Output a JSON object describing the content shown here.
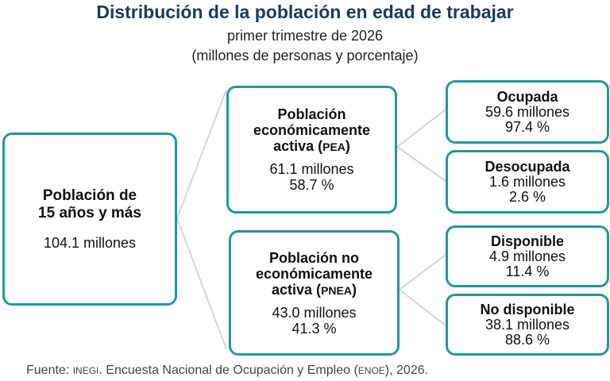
{
  "title": "Distribución de la población en edad de trabajar",
  "subtitle": "primer trimestre de 2026",
  "subtitle2": "(millones de personas y porcentaje)",
  "nodes": {
    "total": {
      "name1": "Población de",
      "name2": "15 años y más",
      "value": "104.1 millones"
    },
    "pea": {
      "name1": "Población",
      "name2": "económicamente",
      "name3": "activa (",
      "abbr": "PEA",
      "name3_end": ")",
      "value": "61.1 millones",
      "pct": "58.7 %"
    },
    "pnea": {
      "name1": "Población no",
      "name2": "económicamente",
      "name3": "activa (",
      "abbr": "PNEA",
      "name3_end": ")",
      "value": "43.0 millones",
      "pct": "41.3 %"
    },
    "ocupada": {
      "name": "Ocupada",
      "value": "59.6 millones",
      "pct": "97.4 %"
    },
    "desocupada": {
      "name": "Desocupada",
      "value": "1.6 millones",
      "pct": "2.6 %"
    },
    "disponible": {
      "name": "Disponible",
      "value": "4.9 millones",
      "pct": "11.4 %"
    },
    "no_disponible": {
      "name": "No disponible",
      "value": "38.1 millones",
      "pct": "88.6 %"
    }
  },
  "source": {
    "prefix": "Fuente: ",
    "inst": "INEGI",
    "middle": ". Encuesta Nacional de Ocupación y Empleo (",
    "survey": "ENOE",
    "suffix": "), 2026."
  },
  "colors": {
    "border": "#1f9a98",
    "title": "#1b3a5c",
    "connector": "#d5d5d5"
  }
}
